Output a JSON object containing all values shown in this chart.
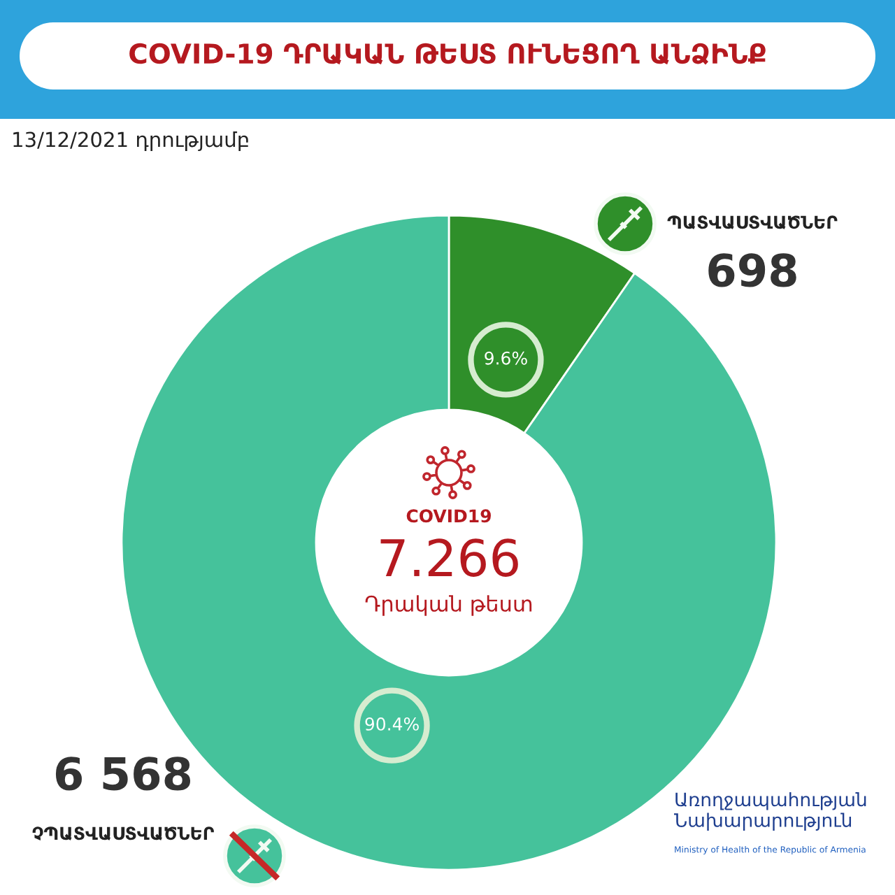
{
  "chart_data": {
    "type": "donut",
    "title": "COVID-19 ԴՐԱԿԱՆ ԹԵՍՏ ՈՒՆԵՑՈՂ ԱՆՁԻՆՔ",
    "subtitle": "13/12/2021 դրությամբ",
    "categories": [
      "ՊԱՏՎԱՍՏՎԱԾՆԵՐ",
      "ՉՊԱՏՎԱՍՏՎԱԾՆԵՐ"
    ],
    "values": [
      698,
      6568
    ],
    "colors": [
      "#2f8f2a",
      "#45c29b"
    ],
    "value_labels": [
      "698",
      "6 568"
    ],
    "annotations": [
      "9.6%",
      "90.4%",
      "COVID19",
      "7.266",
      "Դրական թեստ",
      "Առողջապահության Նախարարություն",
      "Ministry of Health of the Republic of Armenia"
    ]
  }
}
